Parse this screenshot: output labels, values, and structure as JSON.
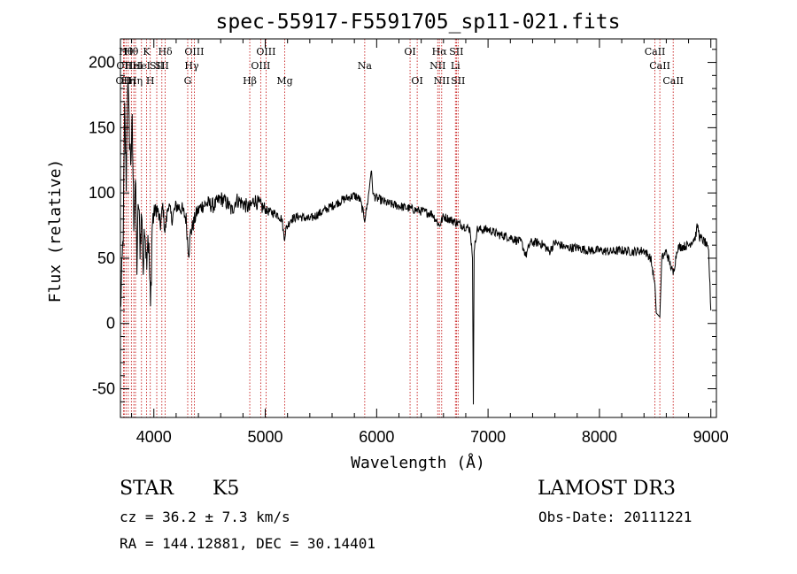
{
  "chart_data": {
    "type": "line",
    "title": "spec-55917-F5591705_sp11-021.fits",
    "xlabel": "Wavelength (Å)",
    "ylabel": "Flux (relative)",
    "xlim": [
      3700,
      9050
    ],
    "ylim": [
      -72,
      218
    ],
    "x_ticks": [
      4000,
      5000,
      6000,
      7000,
      8000,
      9000
    ],
    "y_ticks": [
      -50,
      0,
      50,
      100,
      150,
      200
    ],
    "spectrum_anchors": [
      [
        3700,
        10
      ],
      [
        3712,
        35
      ],
      [
        3725,
        70
      ],
      [
        3738,
        160
      ],
      [
        3752,
        110
      ],
      [
        3765,
        190
      ],
      [
        3778,
        150
      ],
      [
        3792,
        125
      ],
      [
        3806,
        150
      ],
      [
        3820,
        80
      ],
      [
        3834,
        110
      ],
      [
        3848,
        45
      ],
      [
        3862,
        95
      ],
      [
        3876,
        60
      ],
      [
        3890,
        85
      ],
      [
        3905,
        40
      ],
      [
        3920,
        80
      ],
      [
        3933,
        50
      ],
      [
        3947,
        70
      ],
      [
        3960,
        45
      ],
      [
        3970,
        10
      ],
      [
        3985,
        75
      ],
      [
        4000,
        85
      ],
      [
        4030,
        88
      ],
      [
        4060,
        75
      ],
      [
        4080,
        90
      ],
      [
        4100,
        70
      ],
      [
        4130,
        92
      ],
      [
        4160,
        80
      ],
      [
        4200,
        90
      ],
      [
        4250,
        88
      ],
      [
        4290,
        80
      ],
      [
        4305,
        60
      ],
      [
        4315,
        55
      ],
      [
        4330,
        70
      ],
      [
        4350,
        75
      ],
      [
        4385,
        85
      ],
      [
        4430,
        90
      ],
      [
        4480,
        92
      ],
      [
        4540,
        90
      ],
      [
        4600,
        96
      ],
      [
        4660,
        92
      ],
      [
        4700,
        86
      ],
      [
        4740,
        95
      ],
      [
        4800,
        92
      ],
      [
        4860,
        88
      ],
      [
        4900,
        95
      ],
      [
        4960,
        90
      ],
      [
        5020,
        86
      ],
      [
        5100,
        84
      ],
      [
        5150,
        80
      ],
      [
        5170,
        65
      ],
      [
        5185,
        72
      ],
      [
        5230,
        80
      ],
      [
        5300,
        82
      ],
      [
        5400,
        80
      ],
      [
        5500,
        85
      ],
      [
        5600,
        90
      ],
      [
        5700,
        95
      ],
      [
        5800,
        98
      ],
      [
        5850,
        95
      ],
      [
        5893,
        80
      ],
      [
        5910,
        88
      ],
      [
        5930,
        100
      ],
      [
        5950,
        118
      ],
      [
        5970,
        98
      ],
      [
        6000,
        96
      ],
      [
        6100,
        92
      ],
      [
        6200,
        90
      ],
      [
        6300,
        88
      ],
      [
        6400,
        86
      ],
      [
        6500,
        84
      ],
      [
        6563,
        75
      ],
      [
        6600,
        82
      ],
      [
        6700,
        78
      ],
      [
        6800,
        74
      ],
      [
        6840,
        72
      ],
      [
        6860,
        50
      ],
      [
        6868,
        -62
      ],
      [
        6875,
        55
      ],
      [
        6900,
        72
      ],
      [
        7000,
        72
      ],
      [
        7100,
        68
      ],
      [
        7200,
        66
      ],
      [
        7300,
        62
      ],
      [
        7340,
        52
      ],
      [
        7380,
        62
      ],
      [
        7450,
        62
      ],
      [
        7500,
        60
      ],
      [
        7550,
        55
      ],
      [
        7600,
        62
      ],
      [
        7700,
        58
      ],
      [
        7800,
        58
      ],
      [
        7900,
        56
      ],
      [
        8000,
        56
      ],
      [
        8100,
        55
      ],
      [
        8200,
        56
      ],
      [
        8300,
        55
      ],
      [
        8400,
        56
      ],
      [
        8460,
        50
      ],
      [
        8498,
        30
      ],
      [
        8510,
        8
      ],
      [
        8542,
        5
      ],
      [
        8560,
        50
      ],
      [
        8600,
        55
      ],
      [
        8662,
        38
      ],
      [
        8700,
        58
      ],
      [
        8800,
        60
      ],
      [
        8860,
        66
      ],
      [
        8880,
        75
      ],
      [
        8900,
        66
      ],
      [
        8950,
        62
      ],
      [
        8980,
        55
      ],
      [
        9000,
        10
      ]
    ],
    "absorption_lines": [
      {
        "wavelength": 3727,
        "label": "OII",
        "row": 3
      },
      {
        "wavelength": 3734,
        "label": "OII",
        "row": 2
      },
      {
        "wavelength": 3750,
        "label": "Hθ",
        "row": 1
      },
      {
        "wavelength": 3770,
        "label": "Hη",
        "row": 3
      },
      {
        "wavelength": 3798,
        "label": "Hθ",
        "row": 1
      },
      {
        "wavelength": 3820,
        "label": "HeI",
        "row": 2
      },
      {
        "wavelength": 3835,
        "label": "Hη",
        "row": 3
      },
      {
        "wavelength": 3889,
        "label": "HeI",
        "row": 2
      },
      {
        "wavelength": 3934,
        "label": "K",
        "row": 1
      },
      {
        "wavelength": 3968,
        "label": "H",
        "row": 3
      },
      {
        "wavelength": 4026,
        "label": "SII",
        "row": 2
      },
      {
        "wavelength": 4072,
        "label": "SII",
        "row": 2
      },
      {
        "wavelength": 4102,
        "label": "Hδ",
        "row": 1
      },
      {
        "wavelength": 4304,
        "label": "G",
        "row": 3
      },
      {
        "wavelength": 4340,
        "label": "Hγ",
        "row": 2
      },
      {
        "wavelength": 4363,
        "label": "OIII",
        "row": 1
      },
      {
        "wavelength": 4861,
        "label": "Hβ",
        "row": 3
      },
      {
        "wavelength": 4959,
        "label": "OIII",
        "row": 2
      },
      {
        "wavelength": 5007,
        "label": "OIII",
        "row": 1
      },
      {
        "wavelength": 5175,
        "label": "Mg",
        "row": 3
      },
      {
        "wavelength": 5893,
        "label": "Na",
        "row": 2
      },
      {
        "wavelength": 6300,
        "label": "OI",
        "row": 1
      },
      {
        "wavelength": 6364,
        "label": "OI",
        "row": 3
      },
      {
        "wavelength": 6548,
        "label": "NII",
        "row": 2
      },
      {
        "wavelength": 6563,
        "label": "Hα",
        "row": 1
      },
      {
        "wavelength": 6584,
        "label": "NII",
        "row": 3
      },
      {
        "wavelength": 6707,
        "label": "Li",
        "row": 2
      },
      {
        "wavelength": 6716,
        "label": "SII",
        "row": 1
      },
      {
        "wavelength": 6731,
        "label": "SII",
        "row": 3
      },
      {
        "wavelength": 8498,
        "label": "CaII",
        "row": 1
      },
      {
        "wavelength": 8542,
        "label": "CaII",
        "row": 2
      },
      {
        "wavelength": 8662,
        "label": "CaII",
        "row": 3
      }
    ],
    "line_color": "#000000",
    "marker_color": "#c00000"
  },
  "info": {
    "object_class": "STAR",
    "subclass": "K5",
    "survey": "LAMOST DR3",
    "redshift": "cz = 36.2 ± 7.3 km/s",
    "obs_date": "Obs-Date: 20111221",
    "coordinates": "RA = 144.12881, DEC =  30.14401"
  }
}
